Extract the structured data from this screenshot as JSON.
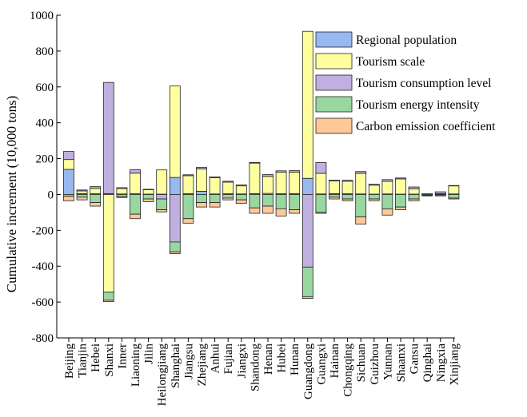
{
  "chart_data": {
    "type": "bar",
    "stacked": true,
    "title": "",
    "xlabel": "",
    "ylabel": "Cumulative increment (10,000 tons)",
    "ylim": [
      -800,
      1000
    ],
    "yticks": [
      -800,
      -600,
      -400,
      -200,
      0,
      200,
      400,
      600,
      800,
      1000
    ],
    "grid": false,
    "legend_position": "top-right",
    "categories": [
      "Beijing",
      "Tianjin",
      "Hebei",
      "Shanxi",
      "Inner",
      "Liaoning",
      "Jilin",
      "Heilongjiang",
      "Shanghai",
      "Jiangsu",
      "Zhejiang",
      "Anhui",
      "Fujian",
      "Jiangxi",
      "Shandong",
      "Henan",
      "Hubei",
      "Hunan",
      "Guangdong",
      "Guangxi",
      "Hainan",
      "Chongqing",
      "Sichuan",
      "Guizhou",
      "Yunnan",
      "Shaanxi",
      "Gansu",
      "Qinghai",
      "Ningxia",
      "Xinjiang"
    ],
    "series": [
      {
        "name": "Regional population",
        "color": "#98b8f0",
        "values": [
          140,
          5,
          4,
          5,
          3,
          4,
          2,
          2,
          95,
          5,
          18,
          3,
          4,
          3,
          5,
          6,
          4,
          5,
          90,
          3,
          5,
          4,
          3,
          2,
          3,
          2,
          2,
          0,
          0,
          3
        ]
      },
      {
        "name": "Tourism scale",
        "color": "#ffffa0",
        "values": [
          55,
          15,
          30,
          -545,
          30,
          115,
          25,
          135,
          510,
          100,
          125,
          90,
          65,
          45,
          170,
          95,
          120,
          120,
          820,
          115,
          70,
          70,
          115,
          50,
          70,
          85,
          30,
          0,
          5,
          45
        ]
      },
      {
        "name": "Tourism consumption level",
        "color": "#c0b0e0",
        "values": [
          45,
          5,
          10,
          620,
          5,
          20,
          2,
          -25,
          -265,
          5,
          8,
          5,
          5,
          5,
          4,
          10,
          8,
          8,
          -405,
          60,
          5,
          5,
          10,
          5,
          10,
          5,
          10,
          5,
          10,
          2
        ]
      },
      {
        "name": "Tourism energy intensity",
        "color": "#98d8a0",
        "values": [
          -10,
          -15,
          -45,
          -45,
          -12,
          -110,
          -25,
          -60,
          -55,
          -135,
          -45,
          -45,
          -20,
          -30,
          -75,
          -65,
          -80,
          -85,
          -165,
          -100,
          -15,
          -25,
          -125,
          -25,
          -80,
          -70,
          -25,
          -5,
          -3,
          -20
        ]
      },
      {
        "name": "Carbon emission coefficient",
        "color": "#ffc898",
        "values": [
          -25,
          -15,
          -20,
          -8,
          -5,
          -25,
          -15,
          -12,
          -10,
          -25,
          -25,
          -25,
          -10,
          -20,
          -30,
          -40,
          -40,
          -20,
          -10,
          -5,
          -10,
          -10,
          -40,
          -10,
          -35,
          -15,
          -10,
          -3,
          -5,
          -5
        ]
      }
    ]
  }
}
